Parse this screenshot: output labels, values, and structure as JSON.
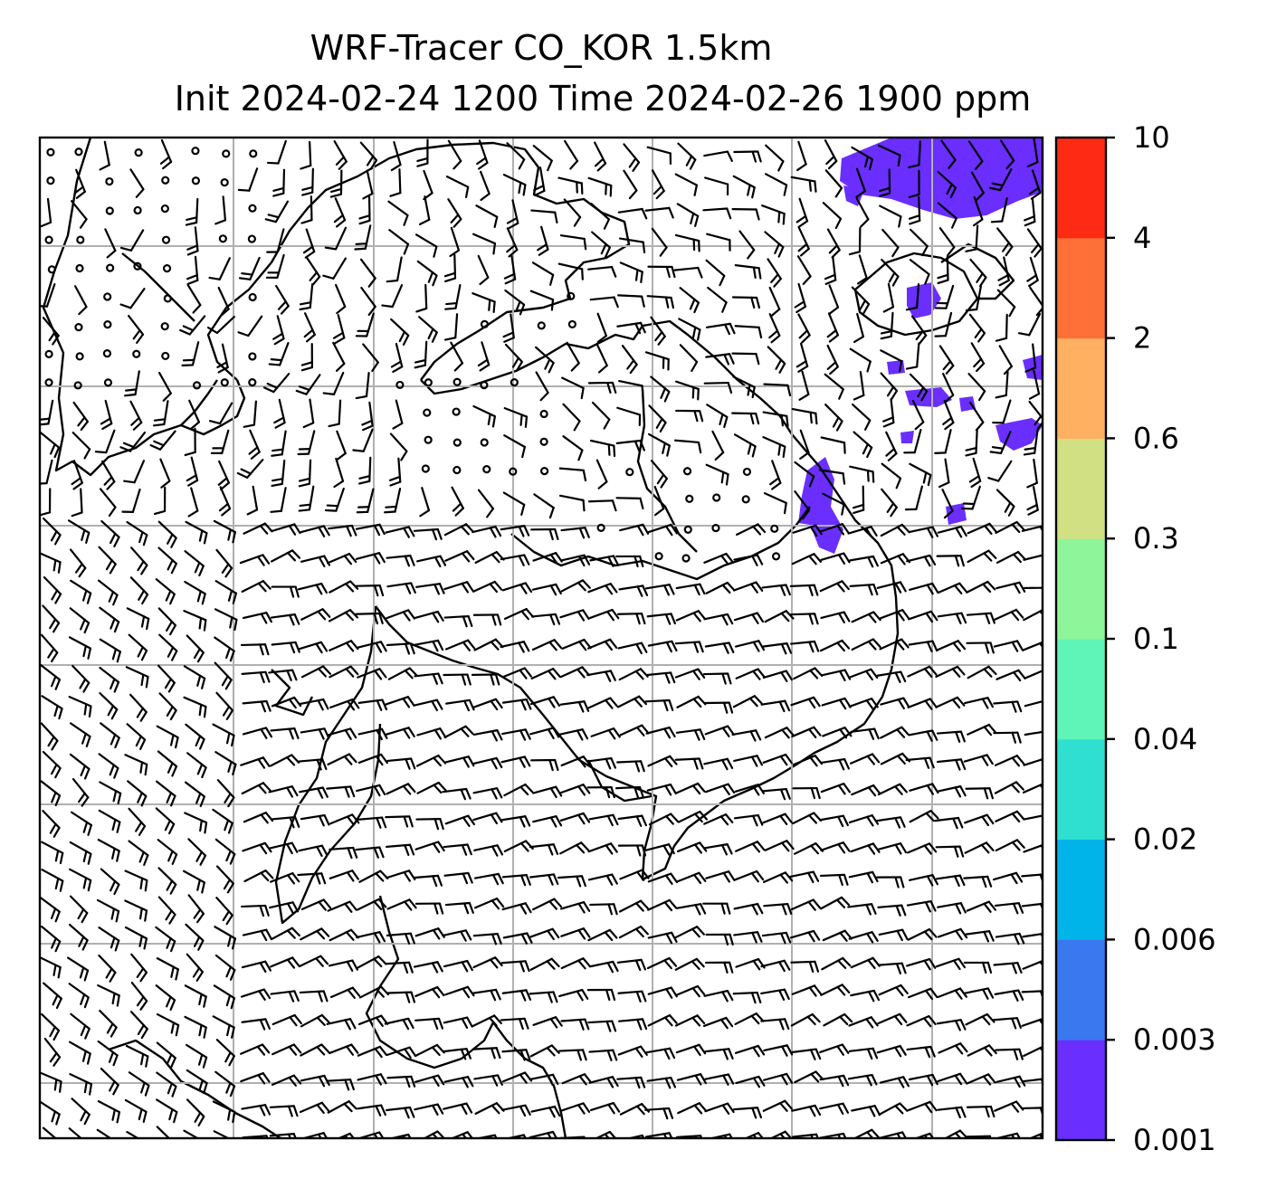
{
  "title": {
    "line1": "WRF-Tracer CO_KOR 1.5km",
    "line2": "Init 2024-02-24 1200 Time 2024-02-26 1900 ppm"
  },
  "map": {
    "gridlines": true,
    "wind_barbs": true,
    "coastlines": true
  },
  "colorbar": {
    "levels": [
      "0.001",
      "0.003",
      "0.006",
      "0.02",
      "0.04",
      "0.1",
      "0.3",
      "0.6",
      "2",
      "4",
      "10"
    ],
    "colors": [
      "#6a2eff",
      "#3a78f0",
      "#00b4ea",
      "#2fdfcf",
      "#5ff5b9",
      "#8ef59a",
      "#d2e084",
      "#ffb060",
      "#ff6f38",
      "#ff2a14"
    ]
  },
  "tracer_overlay": {
    "color": "#6a2eff",
    "level": "0.001"
  }
}
